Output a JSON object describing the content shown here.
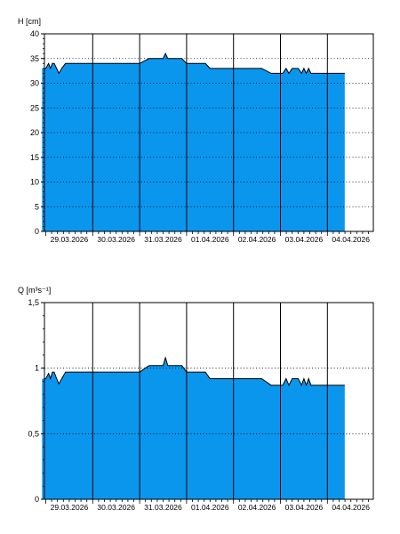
{
  "chart_data": [
    {
      "type": "area",
      "ylabel": "H [cm]",
      "ylim": [
        0,
        40
      ],
      "y_ticks": [
        "0",
        "5",
        "10",
        "15",
        "20",
        "25",
        "30",
        "35",
        "40"
      ],
      "y_tick_values": [
        0,
        5,
        10,
        15,
        20,
        25,
        30,
        35,
        40
      ],
      "x_ticks": [
        "29.03.2026",
        "30.03.2026",
        "31.03.2026",
        "01.04.2026",
        "02.04.2026",
        "03.04.2026",
        "04.04.2026"
      ],
      "xlim": [
        -0.08,
        7.0
      ],
      "grid": "dotted-horizontal, solid day separators",
      "fill_color": "#0b96ee",
      "line_color": "#000000",
      "x": [
        -0.08,
        0.0,
        0.06,
        0.1,
        0.14,
        0.18,
        0.22,
        0.28,
        0.34,
        0.42,
        0.5,
        1.0,
        1.5,
        2.0,
        2.2,
        2.3,
        2.5,
        2.55,
        2.6,
        2.7,
        2.8,
        2.9,
        3.0,
        3.4,
        3.5,
        4.0,
        4.2,
        4.3,
        4.5,
        4.6,
        4.8,
        5.0,
        5.05,
        5.12,
        5.18,
        5.25,
        5.3,
        5.38,
        5.45,
        5.5,
        5.55,
        5.6,
        5.65,
        5.7,
        5.8,
        6.0,
        6.2,
        6.37
      ],
      "values": [
        33.0,
        33.0,
        34.0,
        33.0,
        34.0,
        34.0,
        33.2,
        32.0,
        33.0,
        34.0,
        34.0,
        34.0,
        34.0,
        34.0,
        35.0,
        35.0,
        35.0,
        36.0,
        35.0,
        35.0,
        35.0,
        35.0,
        34.0,
        34.0,
        33.0,
        33.0,
        33.0,
        33.0,
        33.0,
        33.0,
        32.0,
        32.0,
        32.0,
        33.0,
        32.0,
        33.0,
        33.0,
        33.0,
        32.0,
        33.0,
        32.0,
        33.0,
        32.0,
        32.0,
        32.0,
        32.0,
        32.0,
        32.0
      ]
    },
    {
      "type": "area",
      "ylabel": "Q [m³s⁻¹]",
      "ylim": [
        0,
        1.5
      ],
      "y_ticks": [
        "0",
        "0,5",
        "1",
        "1,5"
      ],
      "y_tick_values": [
        0,
        0.5,
        1.0,
        1.5
      ],
      "x_ticks": [
        "29.03.2026",
        "30.03.2026",
        "31.03.2026",
        "01.04.2026",
        "02.04.2026",
        "03.04.2026",
        "04.04.2026"
      ],
      "xlim": [
        -0.08,
        7.0
      ],
      "grid": "dotted-horizontal, solid day separators",
      "fill_color": "#0b96ee",
      "line_color": "#000000",
      "x": [
        -0.08,
        0.0,
        0.06,
        0.1,
        0.14,
        0.18,
        0.22,
        0.28,
        0.34,
        0.42,
        0.5,
        1.0,
        1.5,
        2.0,
        2.2,
        2.3,
        2.5,
        2.55,
        2.6,
        2.7,
        2.8,
        2.9,
        3.0,
        3.4,
        3.5,
        4.0,
        4.2,
        4.3,
        4.5,
        4.6,
        4.8,
        5.0,
        5.05,
        5.12,
        5.18,
        5.25,
        5.3,
        5.38,
        5.45,
        5.5,
        5.55,
        5.6,
        5.65,
        5.7,
        5.8,
        6.0,
        6.2,
        6.37
      ],
      "values": [
        0.92,
        0.92,
        0.96,
        0.92,
        0.97,
        0.97,
        0.93,
        0.88,
        0.92,
        0.97,
        0.97,
        0.97,
        0.97,
        0.97,
        1.02,
        1.02,
        1.02,
        1.08,
        1.02,
        1.02,
        1.02,
        1.02,
        0.97,
        0.97,
        0.92,
        0.92,
        0.92,
        0.92,
        0.92,
        0.92,
        0.87,
        0.87,
        0.87,
        0.92,
        0.87,
        0.92,
        0.92,
        0.92,
        0.87,
        0.92,
        0.87,
        0.92,
        0.87,
        0.87,
        0.87,
        0.87,
        0.87,
        0.87
      ]
    }
  ]
}
